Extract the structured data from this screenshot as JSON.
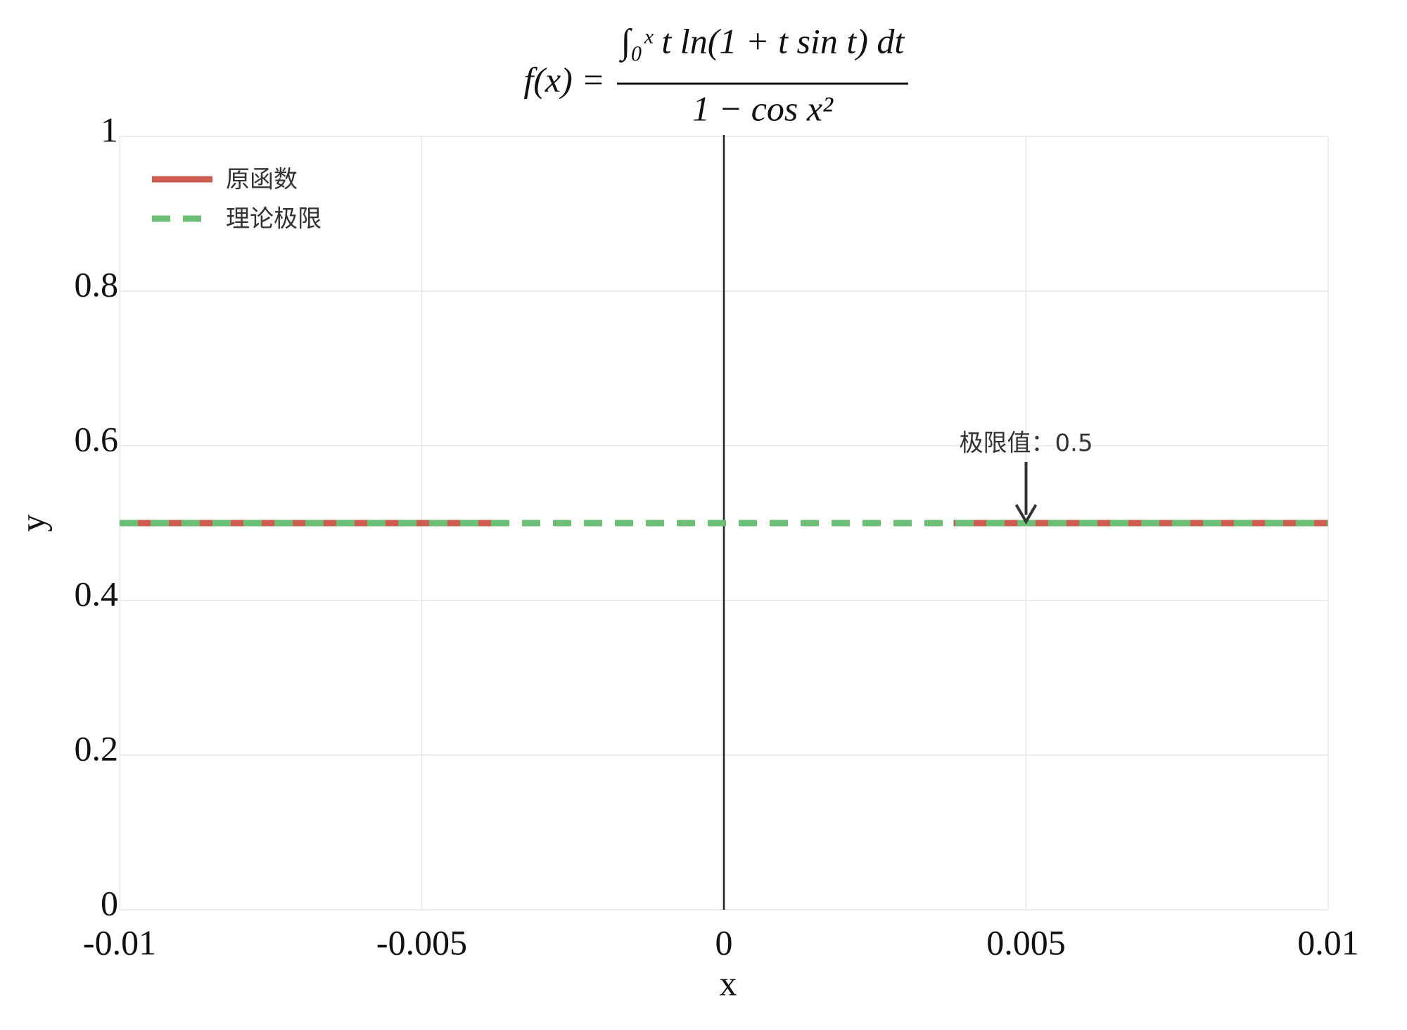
{
  "chart_data": {
    "type": "line",
    "title": {
      "lhs": "f(x) =",
      "numerator": "∫₀ˣ t ln(1 + t sin t) dt",
      "denominator": "1 − cos x²"
    },
    "x_label": "x",
    "y_label": "y",
    "x": [
      -0.01,
      -0.0038,
      0,
      0.0038,
      0.01
    ],
    "series": [
      {
        "name": "原函数",
        "color": "#cd5c4e",
        "dash": false,
        "values": [
          0.5,
          0.5,
          null,
          0.5,
          0.5
        ]
      },
      {
        "name": "理论极限",
        "color": "#6abf75",
        "dash": true,
        "values": [
          0.5,
          0.5,
          0.5,
          0.5,
          0.5
        ]
      }
    ],
    "xlim": [
      -0.01,
      0.01
    ],
    "ylim": [
      0,
      1
    ],
    "xticks": [
      -0.01,
      -0.005,
      0,
      0.005,
      0.01
    ],
    "yticks": [
      0,
      0.2,
      0.4,
      0.6,
      0.8,
      1
    ],
    "grid": true,
    "zeroline": true,
    "legend": "upper-left",
    "annotation": {
      "text": "极限值：0.5",
      "x": 0.005,
      "y": 0.5
    }
  }
}
